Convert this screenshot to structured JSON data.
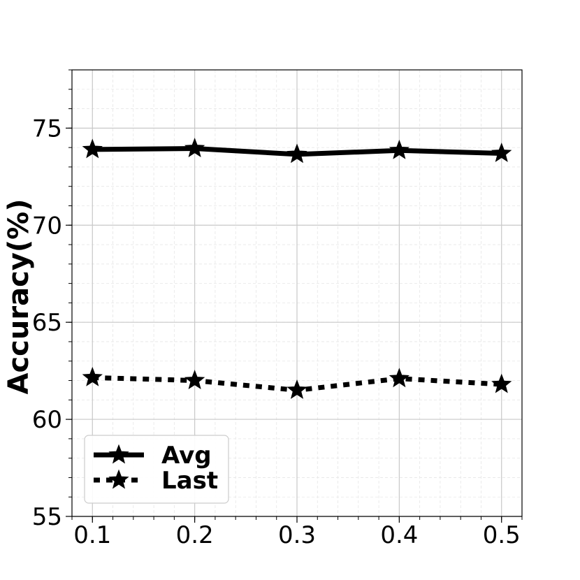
{
  "chart_data": {
    "type": "line",
    "x": [
      0.1,
      0.2,
      0.3,
      0.4,
      0.5
    ],
    "x_tick_labels": [
      "0.1",
      "0.2",
      "0.3",
      "0.4",
      "0.5"
    ],
    "xlim": [
      0.08,
      0.52
    ],
    "ylim": [
      55,
      78
    ],
    "y_ticks": [
      55,
      60,
      65,
      70,
      75
    ],
    "y_tick_labels": [
      "55",
      "60",
      "65",
      "70",
      "75"
    ],
    "xlabel": "",
    "ylabel": "Accuracy(%)",
    "grid": true,
    "legend_position": "lower-left",
    "series": [
      {
        "name": "Avg",
        "values": [
          73.9,
          73.95,
          73.65,
          73.85,
          73.7
        ],
        "line_style": "solid",
        "marker": "star",
        "color": "#000000"
      },
      {
        "name": "Last",
        "values": [
          62.15,
          62.0,
          61.5,
          62.1,
          61.8
        ],
        "line_style": "dotted",
        "marker": "star",
        "color": "#000000"
      }
    ]
  }
}
